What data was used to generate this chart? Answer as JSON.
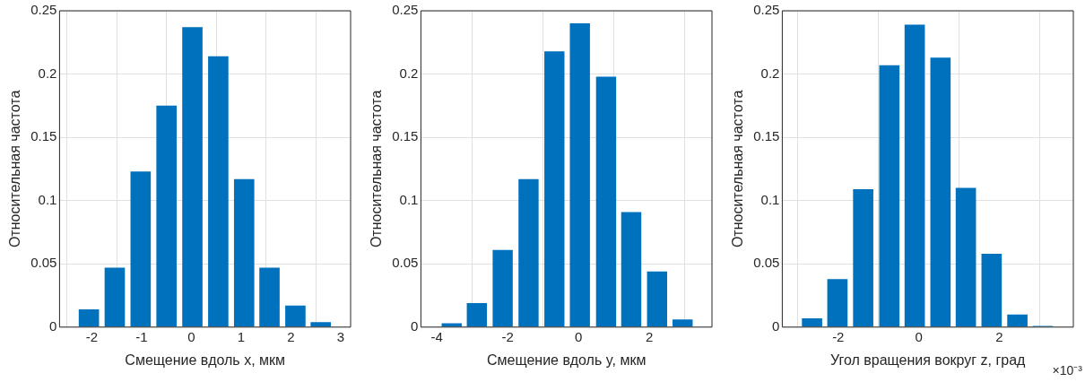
{
  "chart_data": [
    {
      "type": "bar",
      "x": [
        -2.06,
        -1.54,
        -1.02,
        -0.5,
        0.02,
        0.54,
        1.06,
        1.57,
        2.09,
        2.6
      ],
      "values": [
        0.014,
        0.047,
        0.123,
        0.175,
        0.237,
        0.214,
        0.117,
        0.047,
        0.017,
        0.004
      ],
      "color": "#0072bd",
      "xlim": [
        -2.65,
        3.2
      ],
      "xticks": [
        -2,
        -1,
        0,
        1,
        2,
        3
      ],
      "ylim": [
        0,
        0.25
      ],
      "yticks": [
        0,
        0.05,
        0.1,
        0.15,
        0.2,
        0.25
      ],
      "xlabel": "Смещение вдоль x, мкм",
      "ylabel": "Относительная частота",
      "grid": true
    },
    {
      "type": "bar",
      "x": [
        -3.58,
        -2.87,
        -2.14,
        -1.41,
        -0.68,
        0.04,
        0.78,
        1.49,
        2.22,
        2.94
      ],
      "values": [
        0.003,
        0.019,
        0.061,
        0.117,
        0.218,
        0.24,
        0.198,
        0.091,
        0.044,
        0.006
      ],
      "color": "#0072bd",
      "xlim": [
        -4.45,
        3.77
      ],
      "xticks": [
        -4,
        -2,
        0,
        2
      ],
      "ylim": [
        0,
        0.25
      ],
      "yticks": [
        0,
        0.05,
        0.1,
        0.15,
        0.2,
        0.25
      ],
      "xlabel": "Смещение вдоль y, мкм",
      "ylabel": "Относительная частота",
      "grid": true
    },
    {
      "type": "bar",
      "x": [
        -2.65,
        -2.02,
        -1.38,
        -0.73,
        -0.1,
        0.54,
        1.17,
        1.81,
        2.45,
        3.08
      ],
      "values": [
        0.007,
        0.038,
        0.109,
        0.207,
        0.239,
        0.213,
        0.11,
        0.058,
        0.01,
        0.001
      ],
      "color": "#0072bd",
      "xlim": [
        -3.39,
        3.84
      ],
      "xticks": [
        -2,
        0,
        2
      ],
      "ylim": [
        0,
        0.25
      ],
      "yticks": [
        0,
        0.05,
        0.1,
        0.15,
        0.2,
        0.25
      ],
      "xlabel": "Угол вращения вокруг z, град",
      "ylabel": "Относительная частота",
      "grid": true,
      "annotations": [
        "×10⁻³"
      ]
    }
  ]
}
